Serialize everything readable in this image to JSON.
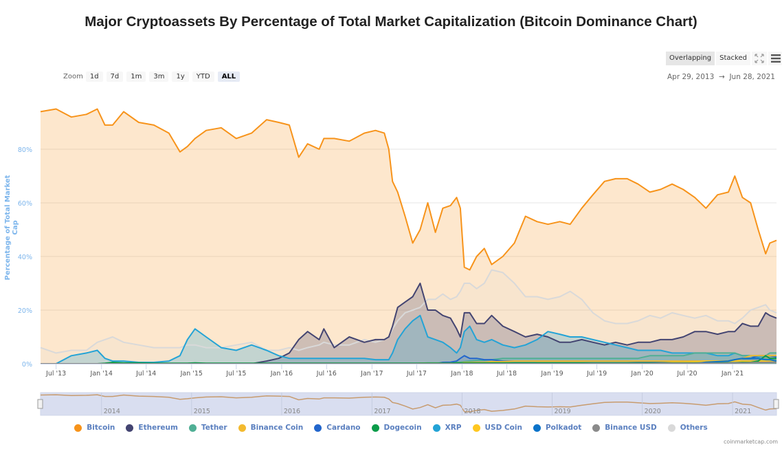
{
  "page": {
    "title": "Major Cryptoassets By Percentage of Total Market Capitalization (Bitcoin Dominance Chart)",
    "credit": "coinmarketcap.com"
  },
  "zoom": {
    "label": "Zoom",
    "buttons": [
      "1d",
      "7d",
      "1m",
      "3m",
      "1y",
      "YTD",
      "ALL"
    ],
    "active": "ALL"
  },
  "view_modes": {
    "overlapping": "Overlapping",
    "stacked": "Stacked",
    "active": "Overlapping"
  },
  "icons": {
    "fullscreen": "fullscreen-icon",
    "menu": "hamburger-menu-icon"
  },
  "date_range": {
    "from": "Apr 29, 2013",
    "arrow": "→",
    "to": "Jun 28, 2021"
  },
  "colors": {
    "Bitcoin": "#f7931a",
    "Ethereum": "#434471",
    "Tether": "#50af95",
    "Binance Coin": "#f3ba2f",
    "Cardano": "#2266cc",
    "Dogecoin": "#0c9c4a",
    "XRP": "#23a3d6",
    "USD Coin": "#ffc720",
    "Polkadot": "#0b73c9",
    "Binance USD": "#8a8a8a",
    "Others": "#d9d9d9"
  },
  "chart_data": {
    "type": "area",
    "title": "Major Cryptoassets By Percentage of Total Market Capitalization (Bitcoin Dominance Chart)",
    "xlabel": "",
    "ylabel": "Percentage of Total Market Cap",
    "ylim": [
      0,
      100
    ],
    "yticks": [
      "0%",
      "20%",
      "40%",
      "60%",
      "80%"
    ],
    "ytick_values": [
      0,
      20,
      40,
      60,
      80
    ],
    "x_range": [
      "2013-04-29",
      "2021-06-28"
    ],
    "xticks": [
      "Jul '13",
      "Jan '14",
      "Jul '14",
      "Jan '15",
      "Jul '15",
      "Jan '16",
      "Jul '16",
      "Jan '17",
      "Jul '17",
      "Jan '18",
      "Jul '18",
      "Jan '19",
      "Jul '19",
      "Jan '20",
      "Jul '20",
      "Jan '21"
    ],
    "xtick_dates": [
      "2013-07-01",
      "2014-01-01",
      "2014-07-01",
      "2015-01-01",
      "2015-07-01",
      "2016-01-01",
      "2016-07-01",
      "2017-01-01",
      "2017-07-01",
      "2018-01-01",
      "2018-07-01",
      "2019-01-01",
      "2019-07-01",
      "2020-01-01",
      "2020-07-01",
      "2021-01-01"
    ],
    "navigator_labels": [
      "2014",
      "2015",
      "2016",
      "2017",
      "2018",
      "2019",
      "2020",
      "2021"
    ],
    "grid": true,
    "legend_position": "bottom",
    "x": [
      "2013-04-29",
      "2013-07-01",
      "2013-09-01",
      "2013-11-01",
      "2013-12-15",
      "2014-01-15",
      "2014-02-15",
      "2014-04-01",
      "2014-06-01",
      "2014-08-01",
      "2014-10-01",
      "2014-11-15",
      "2014-12-15",
      "2015-01-15",
      "2015-03-01",
      "2015-05-01",
      "2015-07-01",
      "2015-09-01",
      "2015-11-01",
      "2015-12-20",
      "2016-02-01",
      "2016-03-10",
      "2016-04-15",
      "2016-06-01",
      "2016-06-20",
      "2016-08-01",
      "2016-10-01",
      "2016-12-01",
      "2017-01-15",
      "2017-02-20",
      "2017-03-10",
      "2017-03-25",
      "2017-04-15",
      "2017-05-15",
      "2017-06-15",
      "2017-07-15",
      "2017-08-15",
      "2017-09-15",
      "2017-10-15",
      "2017-11-15",
      "2017-12-10",
      "2017-12-25",
      "2018-01-10",
      "2018-02-01",
      "2018-03-01",
      "2018-04-01",
      "2018-05-01",
      "2018-06-15",
      "2018-08-01",
      "2018-09-15",
      "2018-11-01",
      "2018-12-15",
      "2019-02-01",
      "2019-03-15",
      "2019-05-01",
      "2019-06-15",
      "2019-08-01",
      "2019-09-15",
      "2019-11-01",
      "2019-12-15",
      "2020-02-01",
      "2020-03-15",
      "2020-05-01",
      "2020-06-15",
      "2020-08-01",
      "2020-09-15",
      "2020-11-01",
      "2020-12-15",
      "2021-01-10",
      "2021-02-10",
      "2021-03-15",
      "2021-04-15",
      "2021-05-15",
      "2021-06-01",
      "2021-06-28"
    ],
    "series": [
      {
        "name": "Bitcoin",
        "values": [
          94,
          95,
          92,
          93,
          95,
          89,
          89,
          94,
          90,
          89,
          86,
          79,
          81,
          84,
          87,
          88,
          84,
          86,
          91,
          90,
          89,
          77,
          82,
          80,
          84,
          84,
          83,
          86,
          87,
          86,
          80,
          68,
          64,
          55,
          45,
          50,
          60,
          49,
          58,
          59,
          62,
          58,
          36,
          35,
          40,
          43,
          37,
          40,
          45,
          55,
          53,
          52,
          53,
          52,
          58,
          63,
          68,
          69,
          69,
          67,
          64,
          65,
          67,
          65,
          62,
          58,
          63,
          64,
          70,
          62,
          60,
          50,
          41,
          45,
          46
        ]
      },
      {
        "name": "Ethereum",
        "values": [
          0,
          0,
          0,
          0,
          0,
          0,
          0,
          0,
          0,
          0,
          0,
          0,
          0,
          0,
          0,
          0,
          0,
          0,
          1,
          2,
          4,
          9,
          12,
          9,
          13,
          6,
          10,
          8,
          9,
          9,
          10,
          14,
          21,
          23,
          25,
          30,
          20,
          20,
          18,
          17,
          13,
          10,
          19,
          19,
          15,
          15,
          18,
          14,
          12,
          10,
          11,
          10,
          8,
          8,
          9,
          8,
          7,
          8,
          7,
          8,
          8,
          9,
          9,
          10,
          12,
          12,
          11,
          12,
          12,
          15,
          14,
          14,
          19,
          18,
          17
        ]
      },
      {
        "name": "Tether",
        "values": [
          0,
          0,
          0,
          0,
          0,
          0,
          0,
          0,
          0,
          0,
          0,
          0,
          0,
          0,
          0,
          0,
          0,
          0,
          0,
          0,
          0,
          0,
          0,
          0,
          0,
          0,
          0,
          0,
          0,
          0,
          0,
          0,
          0,
          0,
          0,
          0.2,
          0.3,
          0.3,
          0.3,
          0.4,
          0.5,
          0.6,
          0.8,
          1,
          1.2,
          1.3,
          1.5,
          2,
          2,
          2,
          2,
          2,
          2,
          2,
          2,
          2,
          2,
          2,
          2,
          2,
          3,
          3,
          3,
          3,
          4,
          4,
          4,
          4,
          4,
          3,
          3,
          3,
          3,
          4,
          4
        ]
      },
      {
        "name": "Binance Coin",
        "values": [
          0,
          0,
          0,
          0,
          0,
          0,
          0,
          0,
          0,
          0,
          0,
          0,
          0,
          0,
          0,
          0,
          0,
          0,
          0,
          0,
          0,
          0,
          0,
          0,
          0,
          0,
          0,
          0,
          0,
          0,
          0,
          0,
          0,
          0,
          0,
          0.2,
          0.2,
          0.2,
          0.2,
          0.2,
          0.3,
          0.3,
          0.5,
          0.5,
          0.6,
          0.6,
          0.8,
          0.8,
          1,
          1,
          1,
          1,
          1,
          1,
          1,
          1,
          1,
          1,
          1,
          1,
          1,
          1,
          1,
          1,
          1,
          1,
          1,
          1,
          1,
          2,
          3,
          3,
          3,
          3,
          3
        ]
      },
      {
        "name": "Cardano",
        "values": [
          0,
          0,
          0,
          0,
          0,
          0,
          0,
          0,
          0,
          0,
          0,
          0,
          0,
          0,
          0,
          0,
          0,
          0,
          0,
          0,
          0,
          0,
          0,
          0,
          0,
          0,
          0,
          0,
          0,
          0,
          0,
          0,
          0,
          0,
          0,
          0,
          0,
          0,
          0.5,
          0.6,
          1,
          2,
          3,
          2,
          2,
          1.5,
          1.5,
          1,
          1,
          1,
          1,
          1,
          1,
          1,
          1,
          1,
          1,
          1,
          1,
          0.8,
          0.8,
          0.8,
          0.8,
          1,
          1,
          1,
          0.8,
          1,
          1.5,
          2,
          2,
          3,
          3,
          3,
          2.5
        ]
      },
      {
        "name": "Dogecoin",
        "values": [
          0,
          0,
          0,
          0,
          0,
          0.2,
          0.5,
          0.3,
          0.3,
          0.2,
          0.2,
          0.2,
          0.2,
          0.3,
          0.2,
          0.2,
          0.2,
          0.2,
          0.2,
          0.2,
          0.2,
          0.2,
          0.2,
          0.2,
          0.2,
          0.2,
          0.2,
          0.2,
          0.2,
          0.2,
          0.2,
          0.2,
          0.2,
          0.2,
          0.2,
          0.2,
          0.2,
          0.2,
          0.2,
          0.2,
          0.3,
          0.3,
          0.3,
          0.3,
          0.3,
          0.3,
          0.3,
          0.3,
          0.3,
          0.3,
          0.3,
          0.3,
          0.3,
          0.3,
          0.3,
          0.3,
          0.3,
          0.3,
          0.3,
          0.3,
          0.3,
          0.3,
          0.3,
          0.3,
          0.3,
          0.3,
          0.3,
          0.3,
          0.3,
          0.5,
          0.5,
          1,
          3,
          2,
          2
        ]
      },
      {
        "name": "XRP",
        "values": [
          0,
          0,
          3,
          4,
          5,
          2,
          1,
          1,
          0.5,
          0.5,
          1,
          3,
          9,
          13,
          10,
          6,
          5,
          7,
          5,
          3,
          2,
          2,
          2,
          2,
          2,
          2,
          2,
          2,
          1.5,
          1.5,
          1.5,
          4,
          9,
          13,
          16,
          18,
          10,
          9,
          8,
          6,
          4,
          6,
          12,
          14,
          9,
          8,
          9,
          7,
          6,
          7,
          9,
          12,
          11,
          10,
          10,
          9,
          8,
          7,
          6,
          5,
          5,
          5,
          4,
          4,
          4,
          4,
          3,
          3,
          4,
          3,
          3,
          2.5,
          3,
          3,
          2.5
        ]
      },
      {
        "name": "USD Coin",
        "values": [
          0,
          0,
          0,
          0,
          0,
          0,
          0,
          0,
          0,
          0,
          0,
          0,
          0,
          0,
          0,
          0,
          0,
          0,
          0,
          0,
          0,
          0,
          0,
          0,
          0,
          0,
          0,
          0,
          0,
          0,
          0,
          0,
          0,
          0,
          0,
          0,
          0,
          0,
          0,
          0,
          0,
          0,
          0,
          0,
          0,
          0,
          0,
          0,
          0,
          0,
          0.3,
          0.3,
          0.3,
          0.3,
          0.3,
          0.2,
          0.2,
          0.2,
          0.2,
          0.2,
          0.2,
          0.3,
          0.5,
          0.5,
          0.8,
          1,
          1,
          1,
          1,
          1,
          1,
          1,
          1,
          1,
          1
        ]
      },
      {
        "name": "Polkadot",
        "values": [
          0,
          0,
          0,
          0,
          0,
          0,
          0,
          0,
          0,
          0,
          0,
          0,
          0,
          0,
          0,
          0,
          0,
          0,
          0,
          0,
          0,
          0,
          0,
          0,
          0,
          0,
          0,
          0,
          0,
          0,
          0,
          0,
          0,
          0,
          0,
          0,
          0,
          0,
          0,
          0,
          0,
          0,
          0,
          0,
          0,
          0,
          0,
          0,
          0,
          0,
          0,
          0,
          0,
          0,
          0,
          0,
          0,
          0,
          0,
          0,
          0,
          0,
          0,
          0,
          0,
          0.6,
          0.8,
          1,
          1.5,
          2,
          2,
          2,
          1.5,
          1.5,
          1
        ]
      },
      {
        "name": "Binance USD",
        "values": [
          0,
          0,
          0,
          0,
          0,
          0,
          0,
          0,
          0,
          0,
          0,
          0,
          0,
          0,
          0,
          0,
          0,
          0,
          0,
          0,
          0,
          0,
          0,
          0,
          0,
          0,
          0,
          0,
          0,
          0,
          0,
          0,
          0,
          0,
          0,
          0,
          0,
          0,
          0,
          0,
          0,
          0,
          0,
          0,
          0,
          0,
          0,
          0,
          0,
          0,
          0,
          0,
          0,
          0,
          0,
          0.1,
          0.1,
          0.1,
          0.1,
          0.1,
          0.1,
          0.2,
          0.2,
          0.2,
          0.2,
          0.2,
          0.2,
          0.2,
          0.3,
          0.3,
          0.4,
          0.5,
          0.5,
          0.6,
          0.6
        ]
      },
      {
        "name": "Others",
        "values": [
          6,
          4,
          5,
          5,
          8,
          9,
          10,
          8,
          7,
          6,
          6,
          6,
          7,
          7,
          6,
          6,
          7,
          8,
          5,
          5,
          6,
          5,
          6,
          7,
          8,
          7,
          7,
          9,
          8,
          9,
          10,
          13,
          16,
          19,
          20,
          21,
          24,
          24,
          26,
          24,
          25,
          27,
          30,
          30,
          28,
          30,
          35,
          34,
          30,
          25,
          25,
          24,
          25,
          27,
          24,
          19,
          16,
          15,
          15,
          16,
          18,
          17,
          19,
          18,
          17,
          18,
          16,
          16,
          15,
          17,
          20,
          21,
          22,
          20,
          19
        ]
      }
    ]
  }
}
